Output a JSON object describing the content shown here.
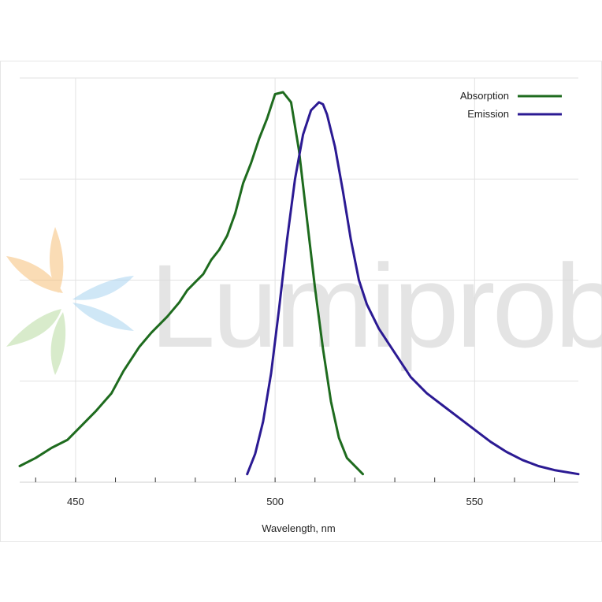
{
  "chart_data": {
    "type": "line",
    "title": "",
    "xlabel": "Wavelength, nm",
    "ylabel": "",
    "xlim": [
      436,
      576
    ],
    "ylim": [
      0,
      1.0
    ],
    "x_ticks": [
      450,
      500,
      550
    ],
    "grid": true,
    "legend_position": "top-right",
    "watermark": "Lumiprobe",
    "series": [
      {
        "name": "Absorption",
        "color": "#1e6b1e",
        "x": [
          436,
          440,
          444,
          448,
          451,
          455,
          459,
          462,
          466,
          469,
          473,
          476,
          478,
          480,
          482,
          484,
          486,
          488,
          490,
          492,
          494,
          496,
          498,
          500,
          502,
          504,
          506,
          508,
          510,
          512,
          514,
          516,
          518,
          522
        ],
        "y": [
          0.04,
          0.06,
          0.085,
          0.105,
          0.135,
          0.175,
          0.22,
          0.275,
          0.335,
          0.37,
          0.41,
          0.445,
          0.475,
          0.495,
          0.515,
          0.55,
          0.575,
          0.61,
          0.665,
          0.74,
          0.79,
          0.85,
          0.9,
          0.96,
          0.965,
          0.94,
          0.82,
          0.65,
          0.48,
          0.33,
          0.2,
          0.11,
          0.06,
          0.02
        ]
      },
      {
        "name": "Emission",
        "color": "#2b1a93",
        "x": [
          493,
          495,
          497,
          499,
          501,
          503,
          505,
          507,
          509,
          511,
          512,
          513,
          515,
          517,
          519,
          521,
          523,
          526,
          530,
          534,
          538,
          542,
          546,
          550,
          554,
          558,
          562,
          566,
          570,
          576
        ],
        "y": [
          0.02,
          0.07,
          0.15,
          0.27,
          0.43,
          0.6,
          0.75,
          0.86,
          0.92,
          0.94,
          0.935,
          0.91,
          0.83,
          0.72,
          0.6,
          0.5,
          0.44,
          0.38,
          0.32,
          0.26,
          0.22,
          0.19,
          0.16,
          0.13,
          0.1,
          0.075,
          0.055,
          0.04,
          0.03,
          0.02
        ]
      }
    ]
  }
}
